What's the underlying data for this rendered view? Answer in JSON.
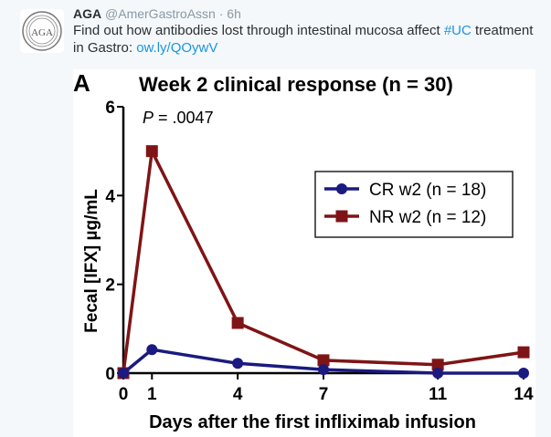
{
  "tweet": {
    "author_name": "AGA",
    "author_handle": "@AmerGastroAssn",
    "separator": "·",
    "time": "6h",
    "text_before": "Find out how antibodies lost through intestinal mucosa affect ",
    "hashtag": "#UC",
    "text_middle": " treatment in Gastro: ",
    "link": "ow.ly/QOywV",
    "avatar_text": "AGA"
  },
  "colors": {
    "cr": "#1a1a80",
    "nr": "#7f1416",
    "link": "#1b95e0"
  },
  "chart_data": {
    "type": "line",
    "panel_label": "A",
    "title": "Week 2 clinical response (n = 30)",
    "annotation": "P = .0047",
    "annotation_italic": "P",
    "annotation_rest": " = .0047",
    "xlabel": "Days after the first infliximab infusion",
    "ylabel": "Fecal [IFX] µg/mL",
    "x": [
      0,
      1,
      4,
      7,
      11,
      14
    ],
    "x_ticks": [
      "0",
      "1",
      "4",
      "7",
      "11",
      "14"
    ],
    "y_ticks": [
      "0",
      "2",
      "4",
      "6"
    ],
    "xlim": [
      0,
      14
    ],
    "ylim": [
      0,
      6
    ],
    "grid": false,
    "legend_position": "top-right",
    "series": [
      {
        "name": "CR w2 (n = 18)",
        "marker": "circle",
        "color": "#1a1a80",
        "values": [
          0,
          0.53,
          0.22,
          0.08,
          0.0,
          0.0
        ]
      },
      {
        "name": "NR w2 (n = 12)",
        "marker": "square",
        "color": "#7f1416",
        "values": [
          0,
          5.0,
          1.13,
          0.29,
          0.19,
          0.47
        ]
      }
    ]
  }
}
